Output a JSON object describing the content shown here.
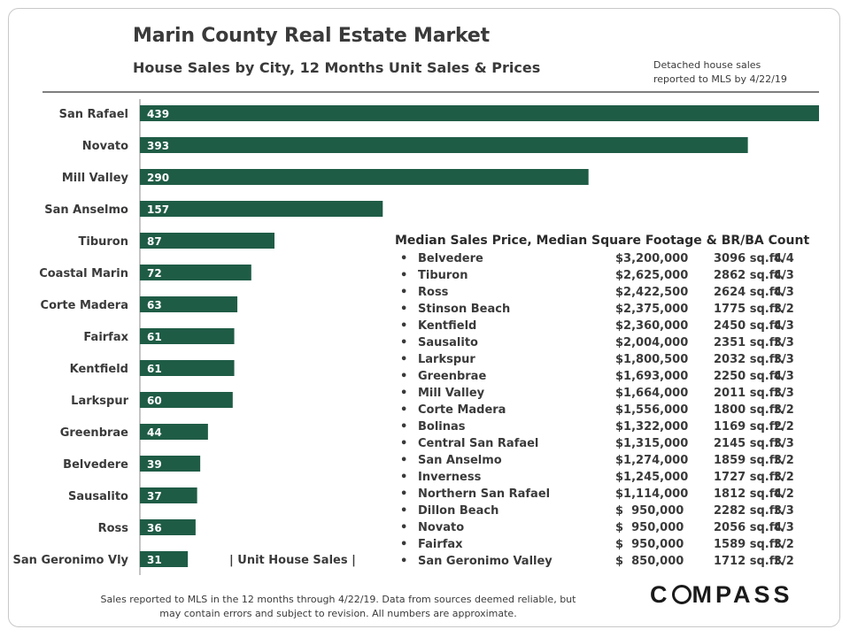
{
  "header": {
    "title": "Marin County Real Estate Market",
    "subtitle": "House Sales by City, 12 Months Unit Sales & Prices",
    "note_line1": "Detached house sales",
    "note_line2": "reported to MLS by 4/22/19"
  },
  "chart_data": {
    "type": "bar",
    "orientation": "horizontal",
    "categories": [
      "San Rafael",
      "Novato",
      "Mill Valley",
      "San Anselmo",
      "Tiburon",
      "Coastal Marin",
      "Corte Madera",
      "Fairfax",
      "Kentfield",
      "Larkspur",
      "Greenbrae",
      "Belvedere",
      "Sausalito",
      "Ross",
      "San Geronimo Vly"
    ],
    "values": [
      439,
      393,
      290,
      157,
      87,
      72,
      63,
      61,
      61,
      60,
      44,
      39,
      37,
      36,
      31
    ],
    "bar_color": "#1f5c46",
    "legend_label": "| Unit House Sales |",
    "xlim": [
      0,
      439
    ]
  },
  "price_table": {
    "title": "Median Sales Price, Median Square Footage & BR/BA Count",
    "bullet": "•",
    "rows": [
      {
        "city": "Belvedere",
        "price": "$3,200,000",
        "sqft": "3096 sq.ft.",
        "brba": "4/4"
      },
      {
        "city": "Tiburon",
        "price": "$2,625,000",
        "sqft": "2862 sq.ft.",
        "brba": "4/3"
      },
      {
        "city": "Ross",
        "price": "$2,422,500",
        "sqft": "2624 sq.ft.",
        "brba": "4/3"
      },
      {
        "city": "Stinson Beach",
        "price": "$2,375,000",
        "sqft": "1775 sq.ft.",
        "brba": "3/2"
      },
      {
        "city": "Kentfield",
        "price": "$2,360,000",
        "sqft": "2450 sq.ft.",
        "brba": "4/3"
      },
      {
        "city": "Sausalito",
        "price": "$2,004,000",
        "sqft": "2351 sq.ft.",
        "brba": "3/3"
      },
      {
        "city": "Larkspur",
        "price": "$1,800,500",
        "sqft": "2032 sq.ft.",
        "brba": "3/3"
      },
      {
        "city": "Greenbrae",
        "price": "$1,693,000",
        "sqft": "2250 sq.ft.",
        "brba": "4/3"
      },
      {
        "city": "Mill Valley",
        "price": "$1,664,000",
        "sqft": "2011 sq.ft.",
        "brba": "3/3"
      },
      {
        "city": "Corte Madera",
        "price": "$1,556,000",
        "sqft": "1800 sq.ft.",
        "brba": "3/2"
      },
      {
        "city": "Bolinas",
        "price": "$1,322,000",
        "sqft": "1169 sq.ft.",
        "brba": "2/2"
      },
      {
        "city": "Central San Rafael",
        "price": "$1,315,000",
        "sqft": "2145 sq.ft.",
        "brba": "3/3"
      },
      {
        "city": "San Anselmo",
        "price": "$1,274,000",
        "sqft": "1859 sq.ft.",
        "brba": "3/2"
      },
      {
        "city": "Inverness",
        "price": "$1,245,000",
        "sqft": "1727 sq.ft.",
        "brba": "3/2"
      },
      {
        "city": "Northern San Rafael",
        "price": "$1,114,000",
        "sqft": "1812 sq.ft.",
        "brba": "4/2"
      },
      {
        "city": "Dillon Beach",
        "price": "$  950,000",
        "sqft": "2282 sq.ft.",
        "brba": "3/3"
      },
      {
        "city": "Novato",
        "price": "$  950,000",
        "sqft": "2056 sq.ft.",
        "brba": "4/3"
      },
      {
        "city": "Fairfax",
        "price": "$  950,000",
        "sqft": "1589 sq.ft.",
        "brba": "3/2"
      },
      {
        "city": "San Geronimo Valley",
        "price": "$  850,000",
        "sqft": "1712 sq.ft.",
        "brba": "3/2"
      }
    ]
  },
  "footer": {
    "line1": "Sales reported to MLS in the 12 months through 4/22/19. Data from sources deemed reliable, but",
    "line2": "may contain errors and subject to revision. All numbers are approximate."
  },
  "logo": {
    "text_before": "C",
    "text_after": "MPASS"
  }
}
